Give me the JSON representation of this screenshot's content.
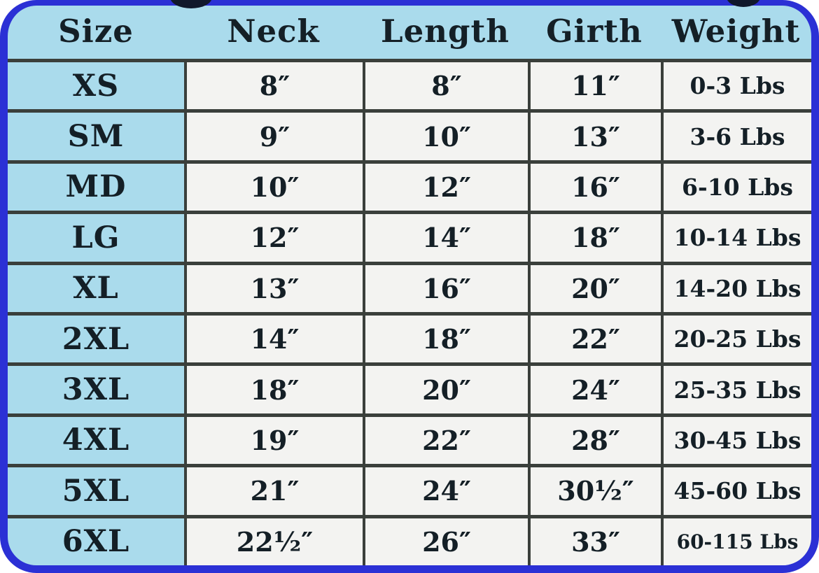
{
  "colors": {
    "border_blue": "#2b30d5",
    "light_blue": "#aadbec",
    "grid": "#3a3f3b",
    "cell_white": "#f3f3f1",
    "text": "#141f26"
  },
  "chart_data": {
    "type": "table",
    "title": "",
    "columns": [
      "Size",
      "Neck",
      "Length",
      "Girth",
      "Weight"
    ],
    "rows": [
      [
        "XS",
        "8″",
        "8″",
        "11″",
        "0-3 Lbs"
      ],
      [
        "SM",
        "9″",
        "10″",
        "13″",
        "3-6 Lbs"
      ],
      [
        "MD",
        "10″",
        "12″",
        "16″",
        "6-10 Lbs"
      ],
      [
        "LG",
        "12″",
        "14″",
        "18″",
        "10-14 Lbs"
      ],
      [
        "XL",
        "13″",
        "16″",
        "20″",
        "14-20 Lbs"
      ],
      [
        "2XL",
        "14″",
        "18″",
        "22″",
        "20-25 Lbs"
      ],
      [
        "3XL",
        "18″",
        "20″",
        "24″",
        "25-35 Lbs"
      ],
      [
        "4XL",
        "19″",
        "22″",
        "28″",
        "30-45 Lbs"
      ],
      [
        "5XL",
        "21″",
        "24″",
        "30½″",
        "45-60 Lbs"
      ],
      [
        "6XL",
        "22½″",
        "26″",
        "33″",
        "60-115 Lbs"
      ]
    ]
  }
}
